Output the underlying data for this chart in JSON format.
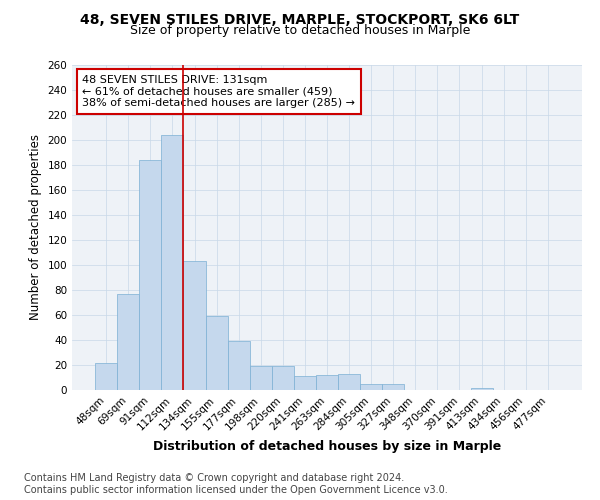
{
  "title1": "48, SEVEN STILES DRIVE, MARPLE, STOCKPORT, SK6 6LT",
  "title2": "Size of property relative to detached houses in Marple",
  "xlabel": "Distribution of detached houses by size in Marple",
  "ylabel": "Number of detached properties",
  "bar_labels": [
    "48sqm",
    "69sqm",
    "91sqm",
    "112sqm",
    "134sqm",
    "155sqm",
    "177sqm",
    "198sqm",
    "220sqm",
    "241sqm",
    "263sqm",
    "284sqm",
    "305sqm",
    "327sqm",
    "348sqm",
    "370sqm",
    "391sqm",
    "413sqm",
    "434sqm",
    "456sqm",
    "477sqm"
  ],
  "bar_values": [
    22,
    77,
    184,
    204,
    103,
    59,
    39,
    19,
    19,
    11,
    12,
    13,
    5,
    5,
    0,
    0,
    0,
    2,
    0,
    0,
    0
  ],
  "bar_color": "#c5d8ed",
  "bar_edge_color": "#7bafd4",
  "vline_index": 4,
  "property_label": "48 SEVEN STILES DRIVE: 131sqm",
  "annotation_line1": "← 61% of detached houses are smaller (459)",
  "annotation_line2": "38% of semi-detached houses are larger (285) →",
  "vline_color": "#cc0000",
  "annotation_box_edge": "#cc0000",
  "ylim": [
    0,
    260
  ],
  "yticks": [
    0,
    20,
    40,
    60,
    80,
    100,
    120,
    140,
    160,
    180,
    200,
    220,
    240,
    260
  ],
  "grid_color": "#c8d8e8",
  "background_color": "#eef2f7",
  "footer_line1": "Contains HM Land Registry data © Crown copyright and database right 2024.",
  "footer_line2": "Contains public sector information licensed under the Open Government Licence v3.0.",
  "title1_fontsize": 10,
  "title2_fontsize": 9,
  "xlabel_fontsize": 9,
  "ylabel_fontsize": 8.5,
  "tick_fontsize": 7.5,
  "annotation_fontsize": 8,
  "footer_fontsize": 7
}
